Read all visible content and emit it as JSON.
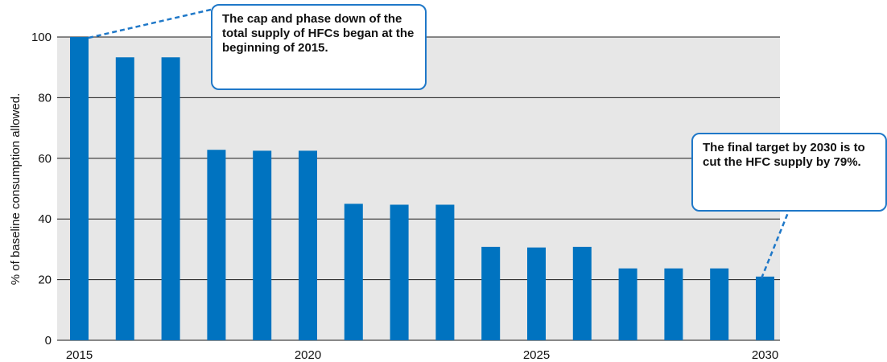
{
  "chart_data": {
    "type": "bar",
    "categories": [
      "2015",
      "2016",
      "2017",
      "2018",
      "2019",
      "2020",
      "2021",
      "2022",
      "2023",
      "2024",
      "2025",
      "2026",
      "2027",
      "2028",
      "2029",
      "2030"
    ],
    "values": [
      100,
      93.3,
      93.3,
      62.8,
      62.5,
      62.5,
      45,
      44.7,
      44.7,
      30.8,
      30.6,
      30.8,
      23.7,
      23.7,
      23.7,
      21
    ],
    "xticks": [
      "2015",
      "2020",
      "2025",
      "2030"
    ],
    "yticks": [
      0,
      20,
      40,
      60,
      80,
      100
    ],
    "ylabel": "% of baseline consumption allowed.",
    "xlabel": "",
    "ylim": [
      0,
      100
    ],
    "grid": true,
    "annotations": [
      "The cap and phase down of the total supply of HFCs began at the beginning of 2015.",
      "The final target by 2030 is to cut the HFC supply by 79%."
    ]
  },
  "colors": {
    "bar": "#0073c0",
    "plot_background": "#e7e7e7",
    "gridline": "#1a1a1a",
    "callout_border": "#1f78c8"
  }
}
